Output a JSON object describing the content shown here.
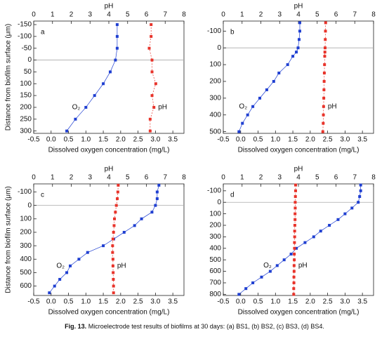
{
  "chart_data": [
    {
      "type": "line",
      "panel_label": "a",
      "x2label": "pH",
      "xlabel": "Dissolved oxygen concentration (mg/L)",
      "ylabel": "Distance from biofilm surface (μm)",
      "y": [
        -150,
        -100,
        -50,
        0,
        50,
        100,
        150,
        200,
        250,
        300
      ],
      "series": [
        {
          "name": "O₂",
          "color": "#1f3fd1",
          "axis": "x",
          "values": [
            1.9,
            1.9,
            1.9,
            1.85,
            1.7,
            1.5,
            1.25,
            1.0,
            0.7,
            0.45
          ]
        },
        {
          "name": "pH",
          "color": "#e8332a",
          "axis": "x2",
          "values": [
            6.25,
            6.25,
            6.15,
            6.3,
            6.3,
            6.5,
            6.3,
            6.4,
            6.2,
            6.2
          ]
        }
      ],
      "xlim": [
        -0.5,
        3.82
      ],
      "xticks": [
        -0.5,
        {
          "value": 0,
          "label": "0.0"
        },
        0.5,
        {
          "value": 1,
          "label": "1.0"
        },
        1.5,
        {
          "value": 2,
          "label": "2.0"
        },
        2.5,
        {
          "value": 3,
          "label": "3.0"
        },
        3.5
      ],
      "x2lim": [
        0,
        8
      ],
      "x2ticks": [
        0,
        1,
        2,
        3,
        4,
        5,
        6,
        7,
        8
      ],
      "ylim": [
        -165,
        310
      ],
      "yticks": [
        -150,
        -100,
        -50,
        0,
        50,
        100,
        150,
        200,
        250,
        300
      ],
      "y_inverted": true,
      "zero_line": true
    },
    {
      "type": "line",
      "panel_label": "b",
      "x2label": "pH",
      "xlabel": "Dissolved oxygen concentration (mg/L)",
      "y": [
        -150,
        -100,
        -50,
        0,
        25,
        50,
        100,
        150,
        200,
        250,
        300,
        350,
        400,
        450,
        500
      ],
      "series": [
        {
          "name": "O₂",
          "color": "#1f3fd1",
          "axis": "x",
          "values": [
            1.7,
            1.7,
            1.68,
            1.65,
            1.6,
            1.5,
            1.35,
            1.1,
            0.95,
            0.75,
            0.55,
            0.35,
            0.2,
            0.05,
            -0.05
          ]
        },
        {
          "name": "pH",
          "color": "#e8332a",
          "axis": "x2",
          "values": [
            5.45,
            5.44,
            5.43,
            5.42,
            5.41,
            5.4,
            5.39,
            5.38,
            5.37,
            5.36,
            5.35,
            5.34,
            5.33,
            5.32,
            5.3
          ]
        }
      ],
      "xlim": [
        -0.5,
        3.82
      ],
      "xticks": [
        -0.5,
        {
          "value": 0,
          "label": "0.0"
        },
        0.5,
        {
          "value": 1,
          "label": "1.0"
        },
        1.5,
        {
          "value": 2,
          "label": "2.0"
        },
        2.5,
        {
          "value": 3,
          "label": "3.0"
        },
        3.5
      ],
      "x2lim": [
        0,
        8
      ],
      "x2ticks": [
        0,
        1,
        2,
        3,
        4,
        5,
        6,
        7,
        8
      ],
      "ylim": [
        -160,
        510
      ],
      "yticks": [
        -100,
        0,
        100,
        200,
        300,
        400,
        500
      ],
      "y_inverted": true,
      "zero_line": true
    },
    {
      "type": "line",
      "panel_label": "c",
      "x2label": "pH",
      "xlabel": "Dissolved oxygen concentration (mg/L)",
      "ylabel": "Distance from biofilm surface (μm)",
      "y": [
        -150,
        -100,
        -50,
        0,
        50,
        100,
        150,
        200,
        250,
        300,
        350,
        400,
        450,
        500,
        550,
        600,
        650
      ],
      "series": [
        {
          "name": "O₂",
          "color": "#1f3fd1",
          "axis": "x",
          "values": [
            3.1,
            3.05,
            3.05,
            3.0,
            2.9,
            2.6,
            2.4,
            2.1,
            1.8,
            1.5,
            1.05,
            0.8,
            0.55,
            0.45,
            0.25,
            0.1,
            -0.05
          ]
        },
        {
          "name": "pH",
          "color": "#e8332a",
          "axis": "x2",
          "values": [
            4.5,
            4.48,
            4.45,
            4.4,
            4.35,
            4.3,
            4.28,
            4.25,
            4.22,
            4.2,
            4.2,
            4.22,
            4.22,
            4.23,
            4.24,
            4.25,
            4.25
          ]
        }
      ],
      "xlim": [
        -0.5,
        3.82
      ],
      "xticks": [
        -0.5,
        {
          "value": 0,
          "label": "0.0"
        },
        0.5,
        {
          "value": 1,
          "label": "1.0"
        },
        1.5,
        {
          "value": 2,
          "label": "2.0"
        },
        2.5,
        {
          "value": 3,
          "label": "3.0"
        },
        3.5
      ],
      "x2lim": [
        0,
        8
      ],
      "x2ticks": [
        0,
        1,
        2,
        3,
        4,
        5,
        6,
        7,
        8
      ],
      "ylim": [
        -160,
        670
      ],
      "yticks": [
        -100,
        0,
        100,
        200,
        300,
        400,
        500,
        600
      ],
      "y_inverted": true,
      "zero_line": true
    },
    {
      "type": "line",
      "panel_label": "d",
      "x2label": "pH",
      "xlabel": "Dissolved oxygen concentration (mg/L)",
      "y": [
        -150,
        -100,
        -50,
        0,
        50,
        100,
        150,
        200,
        250,
        300,
        350,
        400,
        450,
        500,
        550,
        600,
        650,
        700,
        750,
        800
      ],
      "series": [
        {
          "name": "O₂",
          "color": "#1f3fd1",
          "axis": "x",
          "values": [
            3.45,
            3.45,
            3.42,
            3.38,
            3.2,
            3.0,
            2.8,
            2.55,
            2.3,
            2.1,
            1.85,
            1.6,
            1.45,
            1.25,
            1.05,
            0.85,
            0.6,
            0.35,
            0.15,
            -0.05
          ]
        },
        {
          "name": "pH",
          "color": "#e8332a",
          "axis": "x2",
          "values": [
            3.85,
            3.85,
            3.84,
            3.83,
            3.83,
            3.82,
            3.82,
            3.81,
            3.8,
            3.8,
            3.79,
            3.79,
            3.78,
            3.78,
            3.77,
            3.77,
            3.76,
            3.76,
            3.75,
            3.75
          ]
        }
      ],
      "xlim": [
        -0.5,
        3.82
      ],
      "xticks": [
        -0.5,
        {
          "value": 0,
          "label": "0.0"
        },
        0.5,
        {
          "value": 1,
          "label": "1.0"
        },
        1.5,
        {
          "value": 2,
          "label": "2.0"
        },
        2.5,
        {
          "value": 3,
          "label": "3.0"
        },
        3.5
      ],
      "x2lim": [
        0,
        8
      ],
      "x2ticks": [
        0,
        1,
        2,
        3,
        4,
        5,
        6,
        7,
        8
      ],
      "ylim": [
        -160,
        810
      ],
      "yticks": [
        -100,
        0,
        100,
        200,
        300,
        400,
        500,
        600,
        700,
        800
      ],
      "y_inverted": true,
      "zero_line": true
    }
  ],
  "caption": {
    "label": "Fig. 13.",
    "text": "Microelectrode test results of biofilms at 30 days: (a) BS1, (b) BS2, (c) BS3, (d) BS4."
  }
}
